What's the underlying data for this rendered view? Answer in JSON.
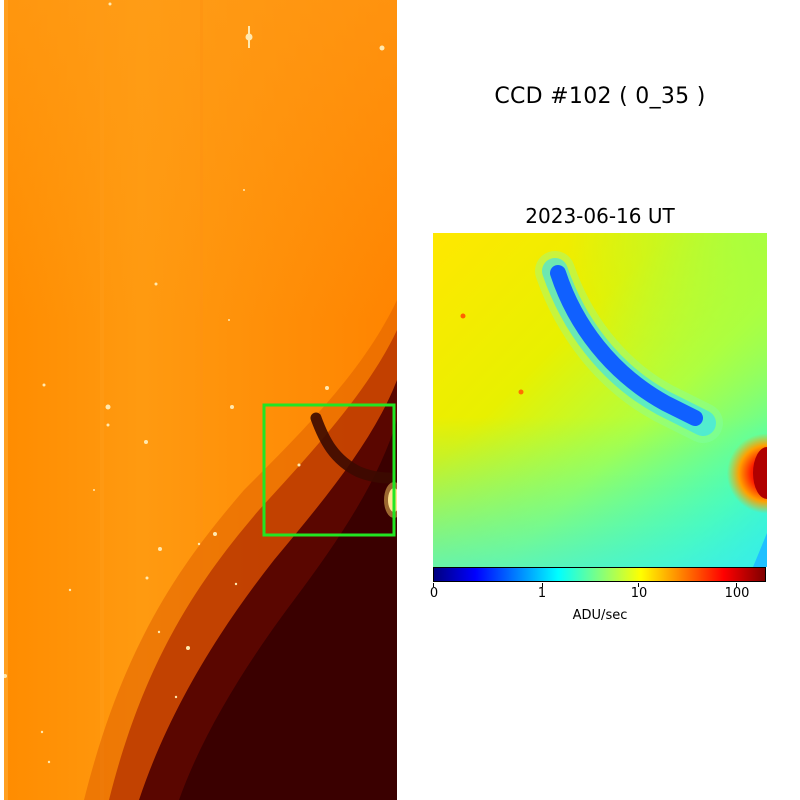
{
  "header": {
    "title": "CCD #102 ( 0_35 )",
    "date": "2023-06-16 UT"
  },
  "colorbar": {
    "ticks": [
      "0",
      "1",
      "10",
      "100"
    ],
    "unit_label": "ADU/sec",
    "colors": [
      "#00007f",
      "#0000ff",
      "#0080ff",
      "#00ffff",
      "#80ff80",
      "#ffff00",
      "#ff8000",
      "#ff0000",
      "#7f0000"
    ]
  },
  "ccd_image": {
    "background_color": "#ff8a00",
    "shadow_color": "#3a0000",
    "highlight_box_color": "#22e622"
  }
}
